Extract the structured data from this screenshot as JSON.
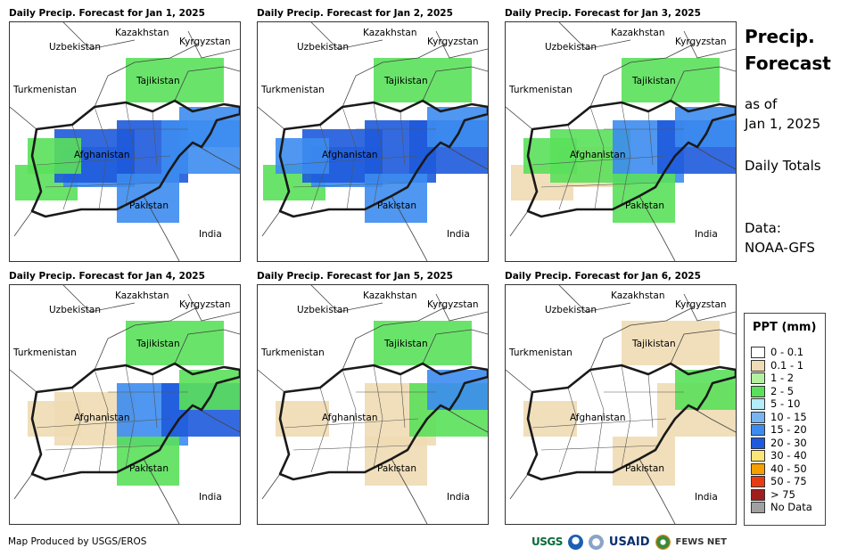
{
  "panels": [
    {
      "title": "Daily Precip. Forecast for Jan 1, 2025",
      "date": "Jan 1, 2025",
      "rain": [
        [
          "a",
          2
        ],
        [
          "b",
          3
        ],
        [
          "c",
          4
        ],
        [
          "d",
          4
        ],
        [
          "e",
          3
        ],
        [
          "f",
          3
        ],
        [
          "g",
          2
        ],
        [
          "h",
          3
        ],
        [
          "i",
          2
        ]
      ]
    },
    {
      "title": "Daily Precip. Forecast for Jan 2, 2025",
      "date": "Jan 2, 2025",
      "rain": [
        [
          "a",
          2
        ],
        [
          "b",
          3
        ],
        [
          "c",
          4
        ],
        [
          "d",
          4
        ],
        [
          "e",
          4
        ],
        [
          "f",
          3
        ],
        [
          "g",
          2
        ],
        [
          "h",
          3
        ],
        [
          "i",
          3
        ]
      ]
    },
    {
      "title": "Daily Precip. Forecast for Jan 3, 2025",
      "date": "Jan 3, 2025",
      "rain": [
        [
          "a",
          1
        ],
        [
          "b",
          1
        ],
        [
          "c",
          2
        ],
        [
          "d",
          3
        ],
        [
          "e",
          4
        ],
        [
          "f",
          3
        ],
        [
          "g",
          2
        ],
        [
          "h",
          2
        ],
        [
          "i",
          2
        ]
      ]
    },
    {
      "title": "Daily Precip. Forecast for Jan 4, 2025",
      "date": "Jan 4, 2025",
      "rain": [
        [
          "a",
          0
        ],
        [
          "b",
          0
        ],
        [
          "c",
          1
        ],
        [
          "d",
          3
        ],
        [
          "e",
          4
        ],
        [
          "f",
          2
        ],
        [
          "g",
          2
        ],
        [
          "h",
          2
        ],
        [
          "i",
          1
        ]
      ]
    },
    {
      "title": "Daily Precip. Forecast for Jan 5, 2025",
      "date": "Jan 5, 2025",
      "rain": [
        [
          "a",
          0
        ],
        [
          "b",
          0
        ],
        [
          "c",
          0
        ],
        [
          "d",
          1
        ],
        [
          "e",
          2
        ],
        [
          "f",
          3
        ],
        [
          "g",
          2
        ],
        [
          "h",
          1
        ],
        [
          "i",
          1
        ]
      ]
    },
    {
      "title": "Daily Precip. Forecast for Jan 6, 2025",
      "date": "Jan 6, 2025",
      "rain": [
        [
          "a",
          0
        ],
        [
          "b",
          0
        ],
        [
          "c",
          0
        ],
        [
          "d",
          0
        ],
        [
          "e",
          1
        ],
        [
          "f",
          2
        ],
        [
          "g",
          1
        ],
        [
          "h",
          1
        ],
        [
          "i",
          1
        ]
      ]
    }
  ],
  "map_labels": {
    "uzbekistan": "Uzbekistan",
    "kazakhstan": "Kazakhstan",
    "kyrgyzstan": "Kyrgyzstan",
    "tajikistan": "Tajikistan",
    "turkmenistan": "Turkmenistan",
    "afghanistan": "Afghanistan",
    "pakistan": "Pakistan",
    "india": "India"
  },
  "sidebar": {
    "title_line1": "Precip.",
    "title_line2": "Forecast",
    "asof_line1": "as of",
    "asof_line2": "Jan 1, 2025",
    "daily_totals": "Daily Totals",
    "data_label": "Data:",
    "data_source": "NOAA-GFS"
  },
  "legend": {
    "title": "PPT (mm)",
    "items": [
      {
        "label": "0 - 0.1",
        "color": "#ffffff"
      },
      {
        "label": "0.1 - 1",
        "color": "#f0dcb4"
      },
      {
        "label": "1 - 2",
        "color": "#b4f0a0"
      },
      {
        "label": "2 - 5",
        "color": "#5ae05a"
      },
      {
        "label": "5 - 10",
        "color": "#b4ecf8"
      },
      {
        "label": "10 - 15",
        "color": "#78b4f0"
      },
      {
        "label": "15 - 20",
        "color": "#3c8cf0"
      },
      {
        "label": "20 - 30",
        "color": "#1e5adc"
      },
      {
        "label": "30 - 40",
        "color": "#fae678"
      },
      {
        "label": "40 - 50",
        "color": "#f5a000"
      },
      {
        "label": "50 - 75",
        "color": "#e63c14"
      },
      {
        "label": "> 75",
        "color": "#a01e1e"
      },
      {
        "label": "No Data",
        "color": "#a0a0a0"
      }
    ]
  },
  "footer": {
    "credit": "Map Produced by USGS/EROS",
    "logos": {
      "usgs": "USGS",
      "usaid": "USAID",
      "fews": "FEWS NET"
    }
  }
}
